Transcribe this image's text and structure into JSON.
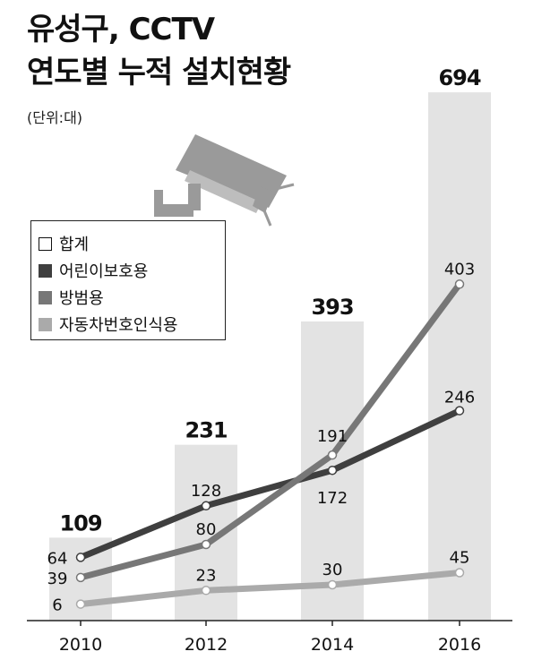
{
  "title_line1": "유성구, CCTV",
  "title_line2": "연도별 누적 설치현황",
  "unit": "(단위:대)",
  "icon": "cctv-camera-icon",
  "colors": {
    "bar": "#e3e3e3",
    "total_swatch": "#ffffff",
    "child": "#3f3f3f",
    "crime": "#777777",
    "plate": "#aaaaaa",
    "text": "#111111"
  },
  "chart_data": {
    "type": "bar+line",
    "categories": [
      "2010",
      "2012",
      "2014",
      "2016"
    ],
    "bars": {
      "name": "합계",
      "values": [
        109,
        231,
        393,
        694
      ],
      "labels": [
        "109",
        "231",
        "393",
        "694"
      ]
    },
    "series": [
      {
        "name": "어린이보호용",
        "values": [
          64,
          128,
          172,
          246
        ],
        "labels": [
          "64",
          "128",
          "172",
          "246"
        ]
      },
      {
        "name": "방범용",
        "values": [
          39,
          80,
          191,
          403
        ],
        "labels": [
          "39",
          "80",
          "191",
          "403"
        ]
      },
      {
        "name": "자동차번호인식용",
        "values": [
          6,
          23,
          30,
          45
        ],
        "labels": [
          "6",
          "23",
          "30",
          "45"
        ]
      }
    ],
    "legend": [
      "합계",
      "어린이보호용",
      "방범용",
      "자동차번호인식용"
    ],
    "legend_position": "left"
  }
}
